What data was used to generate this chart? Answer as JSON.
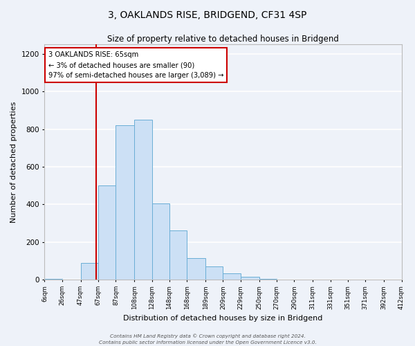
{
  "title": "3, OAKLANDS RISE, BRIDGEND, CF31 4SP",
  "subtitle": "Size of property relative to detached houses in Bridgend",
  "xlabel": "Distribution of detached houses by size in Bridgend",
  "ylabel": "Number of detached properties",
  "bar_color": "#cce0f5",
  "bar_edge_color": "#6aaed6",
  "background_color": "#eef2f9",
  "grid_color": "#ffffff",
  "bins": [
    6,
    26,
    47,
    67,
    87,
    108,
    128,
    148,
    168,
    189,
    209,
    229,
    250,
    270,
    290,
    311,
    331,
    351,
    371,
    392,
    412
  ],
  "counts": [
    5,
    0,
    90,
    500,
    820,
    850,
    405,
    260,
    115,
    70,
    35,
    15,
    5,
    0,
    0,
    0,
    0,
    0,
    0,
    0
  ],
  "tick_labels": [
    "6sqm",
    "26sqm",
    "47sqm",
    "67sqm",
    "87sqm",
    "108sqm",
    "128sqm",
    "148sqm",
    "168sqm",
    "189sqm",
    "209sqm",
    "229sqm",
    "250sqm",
    "270sqm",
    "290sqm",
    "311sqm",
    "331sqm",
    "351sqm",
    "371sqm",
    "392sqm",
    "412sqm"
  ],
  "vline_x": 65,
  "vline_color": "#cc0000",
  "annotation_line1": "3 OAKLANDS RISE: 65sqm",
  "annotation_line2": "← 3% of detached houses are smaller (90)",
  "annotation_line3": "97% of semi-detached houses are larger (3,089) →",
  "annotation_box_color": "#ffffff",
  "annotation_box_edge_color": "#cc0000",
  "ylim": [
    0,
    1250
  ],
  "yticks": [
    0,
    200,
    400,
    600,
    800,
    1000,
    1200
  ],
  "footer_line1": "Contains HM Land Registry data © Crown copyright and database right 2024.",
  "footer_line2": "Contains public sector information licensed under the Open Government Licence v3.0."
}
